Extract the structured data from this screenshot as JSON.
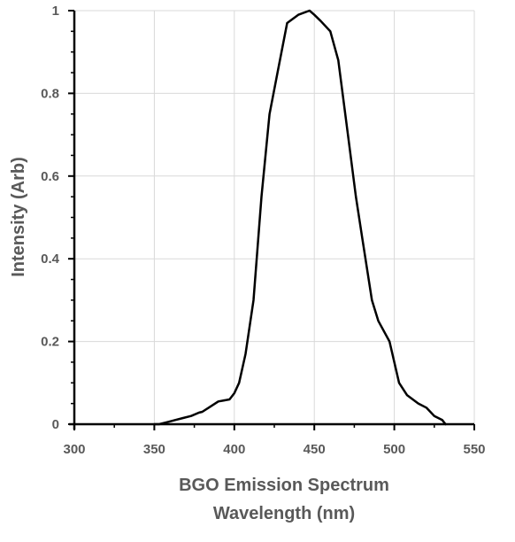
{
  "chart_data": {
    "type": "line",
    "title": "",
    "xlabel_lines": [
      "BGO Emission Spectrum",
      "Wavelength (nm)"
    ],
    "ylabel": "Intensity (Arb)",
    "xlim": [
      300,
      550
    ],
    "ylim": [
      0,
      1
    ],
    "x_ticks": [
      300,
      350,
      400,
      450,
      500,
      550
    ],
    "x_tick_labels": [
      "300",
      "350",
      "400",
      "450",
      "500",
      "550"
    ],
    "y_ticks": [
      0,
      0.2,
      0.4,
      0.6,
      0.8,
      1
    ],
    "y_tick_labels": [
      "0",
      "0.2",
      "0.4",
      "0.6",
      "0.8",
      "1"
    ],
    "grid": true,
    "legend": "none",
    "colors": {
      "line": "#000000",
      "grid": "#d9d9d9",
      "axis": "#000000",
      "text": "#595959"
    },
    "series": [
      {
        "x": [
          350,
          353,
          358,
          363,
          368,
          373,
          378,
          380,
          384,
          390,
          397,
          400,
          403,
          407,
          412,
          417,
          422,
          427,
          433,
          440,
          447,
          450,
          454,
          460,
          465,
          471,
          476,
          480,
          486,
          490,
          497,
          503,
          508,
          515,
          520,
          525,
          530,
          532
        ],
        "y": [
          0,
          0,
          0.005,
          0.01,
          0.015,
          0.02,
          0.028,
          0.03,
          0.04,
          0.055,
          0.06,
          0.075,
          0.1,
          0.17,
          0.3,
          0.55,
          0.75,
          0.85,
          0.97,
          0.99,
          1,
          0.99,
          0.975,
          0.95,
          0.88,
          0.7,
          0.55,
          0.45,
          0.3,
          0.25,
          0.2,
          0.1,
          0.07,
          0.05,
          0.04,
          0.02,
          0.01,
          0
        ]
      }
    ]
  }
}
